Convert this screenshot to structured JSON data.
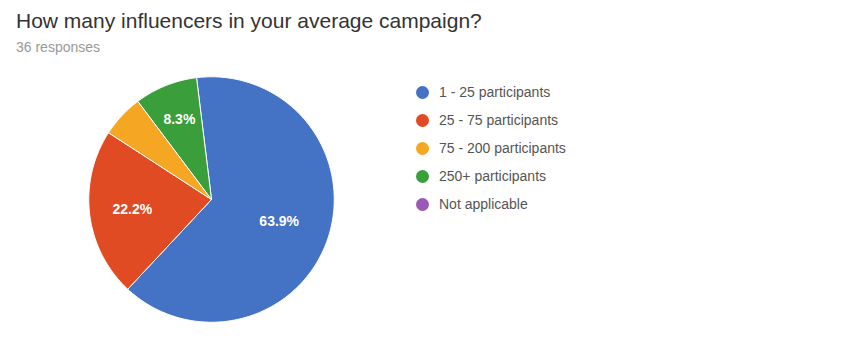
{
  "chart_data": {
    "type": "pie",
    "title": "How many influencers in your average campaign?",
    "subtitle": "36 responses",
    "categories": [
      "1 - 25 participants",
      "25 - 75 participants",
      "75 - 200 participants",
      "250+ participants",
      "Not applicable"
    ],
    "values": [
      63.9,
      22.2,
      5.6,
      8.3,
      0.0
    ],
    "value_labels": [
      "63.9%",
      "22.2%",
      null,
      "8.3%",
      null
    ],
    "colors": [
      "#4472C4",
      "#E04B23",
      "#F5A623",
      "#3A9E3A",
      "#9B59B6"
    ],
    "legend": "right"
  }
}
